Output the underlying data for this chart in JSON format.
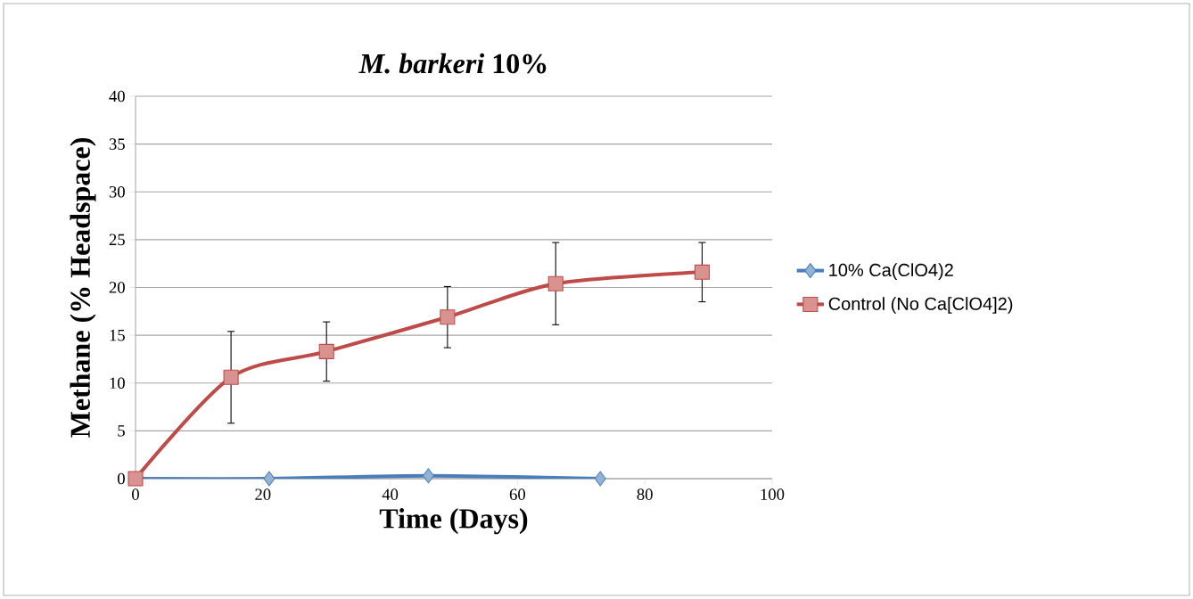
{
  "chart_data": {
    "type": "line",
    "title": "*M. barkeri* 10%",
    "xlabel": "Time (Days)",
    "ylabel": "Methane (% Headspace)",
    "xlim": [
      0,
      100
    ],
    "xticks": [
      0,
      20,
      40,
      60,
      80,
      100
    ],
    "ylim": [
      0,
      40
    ],
    "yticks": [
      0,
      5,
      10,
      15,
      20,
      25,
      30,
      35,
      40
    ],
    "grid": "y",
    "legend": "right",
    "series": [
      {
        "name": "10% Ca(ClO4)2",
        "color": "#4a7ebb",
        "marker": "diamond",
        "x": [
          0,
          21,
          46,
          73
        ],
        "values": [
          0,
          0,
          0.3,
          0
        ]
      },
      {
        "name": "Control (No Ca[ClO4]2)",
        "color": "#be4b48",
        "marker": "square",
        "x": [
          0,
          15,
          30,
          49,
          66,
          89
        ],
        "values": [
          0,
          10.6,
          13.3,
          16.9,
          20.4,
          21.6
        ],
        "errors": [
          null,
          4.8,
          3.1,
          3.2,
          4.3,
          3.1
        ]
      }
    ]
  }
}
